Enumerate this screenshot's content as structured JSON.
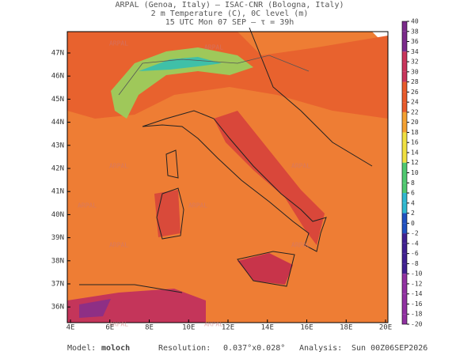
{
  "header": {
    "lines": [
      "ARPAL (Genoa, Italy)  –  ISAC-CNR (Bologna, Italy)",
      "2 m Temperature (C), 0C level (m)",
      "15 UTC Mon 07 SEP  –  τ = 39h"
    ]
  },
  "map": {
    "lat_labels": [
      "47N",
      "46N",
      "45N",
      "44N",
      "43N",
      "42N",
      "41N",
      "40N",
      "39N",
      "38N",
      "37N",
      "36N"
    ],
    "lon_labels": [
      "4E",
      "6E",
      "8E",
      "10E",
      "12E",
      "14E",
      "16E",
      "18E",
      "20E"
    ],
    "watermark": "ARPAL"
  },
  "colorbar": {
    "ticks": [
      40,
      38,
      36,
      34,
      32,
      30,
      28,
      26,
      24,
      22,
      20,
      18,
      16,
      14,
      12,
      10,
      8,
      6,
      4,
      2,
      0,
      -2,
      -4,
      -6,
      -8,
      -10,
      -12,
      -14,
      -16,
      -18,
      -20
    ]
  },
  "footer": {
    "model_label": "Model:",
    "model": "moloch",
    "resolution_label": "Resolution:",
    "resolution": "0.037°x0.028°",
    "analysis_label": "Analysis:",
    "analysis": "Sun 00Z06SEP2026"
  }
}
